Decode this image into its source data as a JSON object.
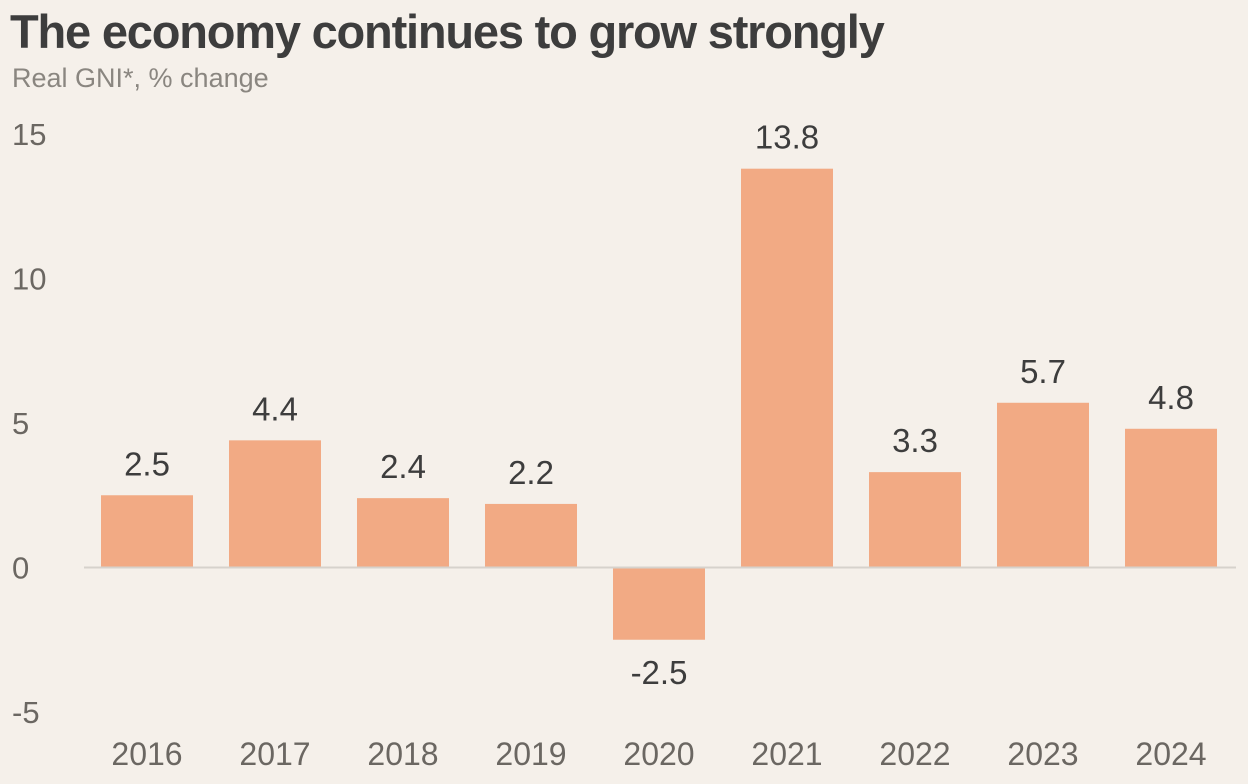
{
  "title": "The economy continues to grow strongly",
  "subtitle": "Real GNI*, % change",
  "colors": {
    "background": "#f5f0ea",
    "bar": "#f2aa84",
    "axis_line": "#d6d2cc",
    "text": "#3d3d3d",
    "subtitle": "#8a8680",
    "tick": "#6b6762"
  },
  "chart_data": {
    "type": "bar",
    "categories": [
      "2016",
      "2017",
      "2018",
      "2019",
      "2020",
      "2021",
      "2022",
      "2023",
      "2024"
    ],
    "values": [
      2.5,
      4.4,
      2.4,
      2.2,
      -2.5,
      13.8,
      3.3,
      5.7,
      4.8
    ],
    "data_labels": [
      "2.5",
      "4.4",
      "2.4",
      "2.2",
      "-2.5",
      "13.8",
      "3.3",
      "5.7",
      "4.8"
    ],
    "yticks": [
      15,
      10,
      5,
      0,
      -5
    ],
    "ytick_labels": [
      "15",
      "10",
      "5",
      "0",
      "-5"
    ],
    "ylim": [
      -5,
      15
    ],
    "grid": false,
    "legend": "none"
  }
}
